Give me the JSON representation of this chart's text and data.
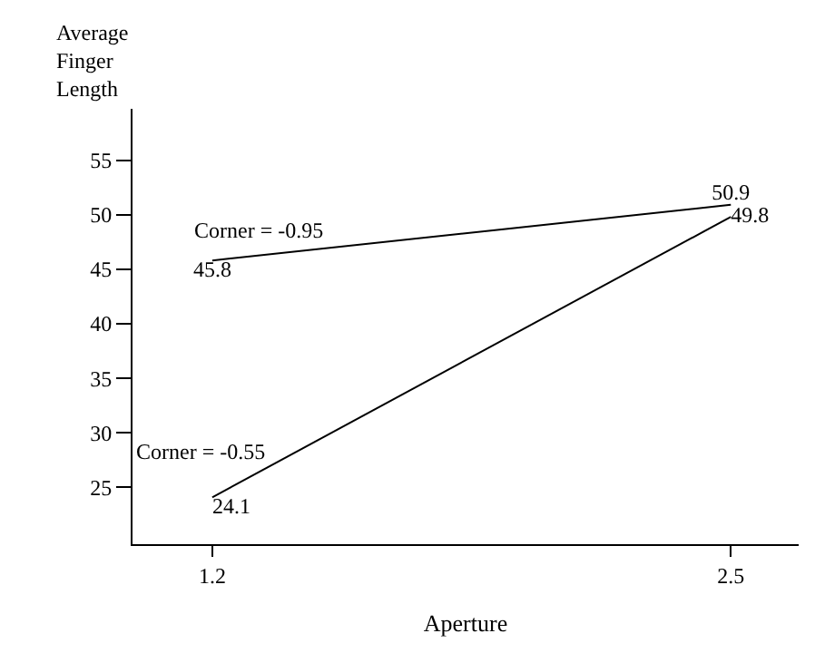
{
  "chart_data": {
    "type": "line",
    "ylabel": "Average Finger Length",
    "xlabel": "Aperture",
    "x": [
      1.2,
      2.5
    ],
    "xlim": [
      1.0,
      2.67
    ],
    "xticks": [
      1.2,
      2.5
    ],
    "ylim": [
      19.8,
      59.7
    ],
    "yticks": [
      25,
      30,
      35,
      40,
      45,
      50,
      55
    ],
    "series": [
      {
        "name": "Corner = -0.95",
        "color": "#000000",
        "values": [
          45.8,
          50.9
        ]
      },
      {
        "name": "Corner = -0.55",
        "color": "#000000",
        "values": [
          24.1,
          49.8
        ]
      }
    ],
    "data_labels": true,
    "legend": false,
    "marker": "none",
    "line_style": "solid"
  }
}
